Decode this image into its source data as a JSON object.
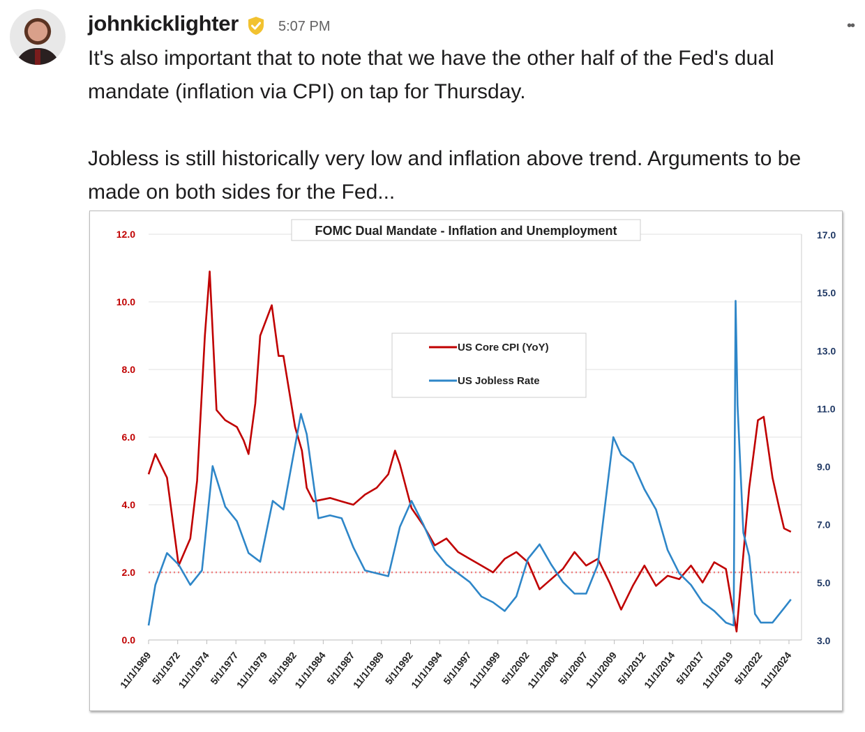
{
  "message": {
    "author": "johnkicklighter",
    "verified_icon": "verified-shield-icon",
    "badge_color": "#F2C230",
    "timestamp": "5:07 PM",
    "more_icon": "more-horizontal-icon",
    "paragraphs": [
      "It's also important that to note that we have the other half of the Fed's dual mandate (inflation via CPI) on tap for Thursday.",
      "Jobless is still historically very low and inflation above trend. Arguments to be made on both sides for the Fed..."
    ]
  },
  "chart_data": {
    "type": "line",
    "title": "FOMC Dual Mandate - Inflation and Unemployment",
    "grid": true,
    "legend_placement": "center-top",
    "left_axis": {
      "ylim": [
        0,
        12
      ],
      "ticks": [
        "0.0",
        "2.0",
        "4.0",
        "6.0",
        "8.0",
        "10.0",
        "12.0"
      ],
      "color": "#C00000"
    },
    "right_axis": {
      "ylim": [
        3,
        17
      ],
      "ticks": [
        "3.0",
        "5.0",
        "7.0",
        "9.0",
        "11.0",
        "13.0",
        "15.0",
        "17.0"
      ],
      "color": "#1F3864"
    },
    "x_ticks": [
      "11/1/1969",
      "5/1/1972",
      "11/1/1974",
      "5/1/1977",
      "11/1/1979",
      "5/1/1982",
      "11/1/1984",
      "5/1/1987",
      "11/1/1989",
      "5/1/1992",
      "11/1/1994",
      "5/1/1997",
      "11/1/1999",
      "5/1/2002",
      "11/1/2004",
      "5/1/2007",
      "11/1/2009",
      "5/1/2012",
      "11/1/2014",
      "5/1/2017",
      "11/1/2019",
      "5/1/2022",
      "11/1/2024"
    ],
    "reference_line": {
      "value": 2.0,
      "axis": "left",
      "color": "#F08080",
      "style": "dotted"
    },
    "series": [
      {
        "name": "US Core CPI (YoY)",
        "axis": "left",
        "color": "#C00000",
        "x": [
          "1969-11",
          "1970-06",
          "1971-06",
          "1972-06",
          "1973-06",
          "1974-01",
          "1974-09",
          "1975-02",
          "1975-09",
          "1976-06",
          "1977-06",
          "1978-01",
          "1978-06",
          "1979-01",
          "1979-06",
          "1980-06",
          "1981-01",
          "1981-06",
          "1982-06",
          "1983-01",
          "1983-06",
          "1984-01",
          "1985-06",
          "1986-06",
          "1987-06",
          "1988-06",
          "1989-06",
          "1990-06",
          "1991-01",
          "1991-06",
          "1992-06",
          "1993-06",
          "1994-06",
          "1995-06",
          "1996-06",
          "1997-06",
          "1998-06",
          "1999-06",
          "2000-06",
          "2001-06",
          "2002-06",
          "2003-06",
          "2004-06",
          "2005-06",
          "2006-06",
          "2007-06",
          "2008-06",
          "2009-06",
          "2010-06",
          "2011-06",
          "2012-06",
          "2013-06",
          "2014-06",
          "2015-06",
          "2016-06",
          "2017-06",
          "2018-06",
          "2019-06",
          "2020-05",
          "2021-06",
          "2022-03",
          "2022-09",
          "2023-06",
          "2024-01",
          "2024-06",
          "2025-01"
        ],
        "values": [
          4.9,
          5.5,
          4.8,
          2.2,
          3.0,
          4.7,
          9.0,
          10.9,
          6.8,
          6.5,
          6.3,
          5.9,
          5.5,
          7.0,
          9.0,
          9.9,
          8.4,
          8.4,
          6.3,
          5.6,
          4.5,
          4.1,
          4.2,
          4.1,
          4.0,
          4.3,
          4.5,
          4.9,
          5.6,
          5.2,
          3.9,
          3.4,
          2.8,
          3.0,
          2.6,
          2.4,
          2.2,
          2.0,
          2.4,
          2.6,
          2.3,
          1.5,
          1.8,
          2.1,
          2.6,
          2.2,
          2.4,
          1.7,
          0.9,
          1.6,
          2.2,
          1.6,
          1.9,
          1.8,
          2.2,
          1.7,
          2.3,
          2.1,
          0.25,
          4.5,
          6.5,
          6.6,
          4.8,
          3.9,
          3.3,
          3.2
        ]
      },
      {
        "name": "US Jobless Rate",
        "axis": "right",
        "color": "#2E86C8",
        "x": [
          "1969-11",
          "1970-06",
          "1971-06",
          "1972-06",
          "1973-06",
          "1974-06",
          "1975-05",
          "1976-06",
          "1977-06",
          "1978-06",
          "1979-06",
          "1980-07",
          "1981-06",
          "1982-12",
          "1983-06",
          "1984-06",
          "1985-06",
          "1986-06",
          "1987-06",
          "1988-06",
          "1989-06",
          "1990-06",
          "1991-06",
          "1992-06",
          "1993-06",
          "1994-06",
          "1995-06",
          "1996-06",
          "1997-06",
          "1998-06",
          "1999-06",
          "2000-06",
          "2001-06",
          "2002-06",
          "2003-06",
          "2004-06",
          "2005-06",
          "2006-06",
          "2007-06",
          "2008-06",
          "2009-10",
          "2010-06",
          "2011-06",
          "2012-06",
          "2013-06",
          "2014-06",
          "2015-06",
          "2016-06",
          "2017-06",
          "2018-06",
          "2019-06",
          "2020-02",
          "2020-04",
          "2020-06",
          "2020-12",
          "2021-06",
          "2021-12",
          "2022-06",
          "2023-06",
          "2024-06",
          "2025-01"
        ],
        "values": [
          3.5,
          4.9,
          6.0,
          5.6,
          4.9,
          5.4,
          9.0,
          7.6,
          7.1,
          6.0,
          5.7,
          7.8,
          7.5,
          10.8,
          10.1,
          7.2,
          7.3,
          7.2,
          6.2,
          5.4,
          5.3,
          5.2,
          6.9,
          7.8,
          7.0,
          6.1,
          5.6,
          5.3,
          5.0,
          4.5,
          4.3,
          4.0,
          4.5,
          5.8,
          6.3,
          5.6,
          5.0,
          4.6,
          4.6,
          5.6,
          10.0,
          9.4,
          9.1,
          8.2,
          7.5,
          6.1,
          5.3,
          4.9,
          4.3,
          4.0,
          3.6,
          3.5,
          14.7,
          11.1,
          6.7,
          5.9,
          3.9,
          3.6,
          3.6,
          4.1,
          4.4
        ]
      }
    ]
  }
}
